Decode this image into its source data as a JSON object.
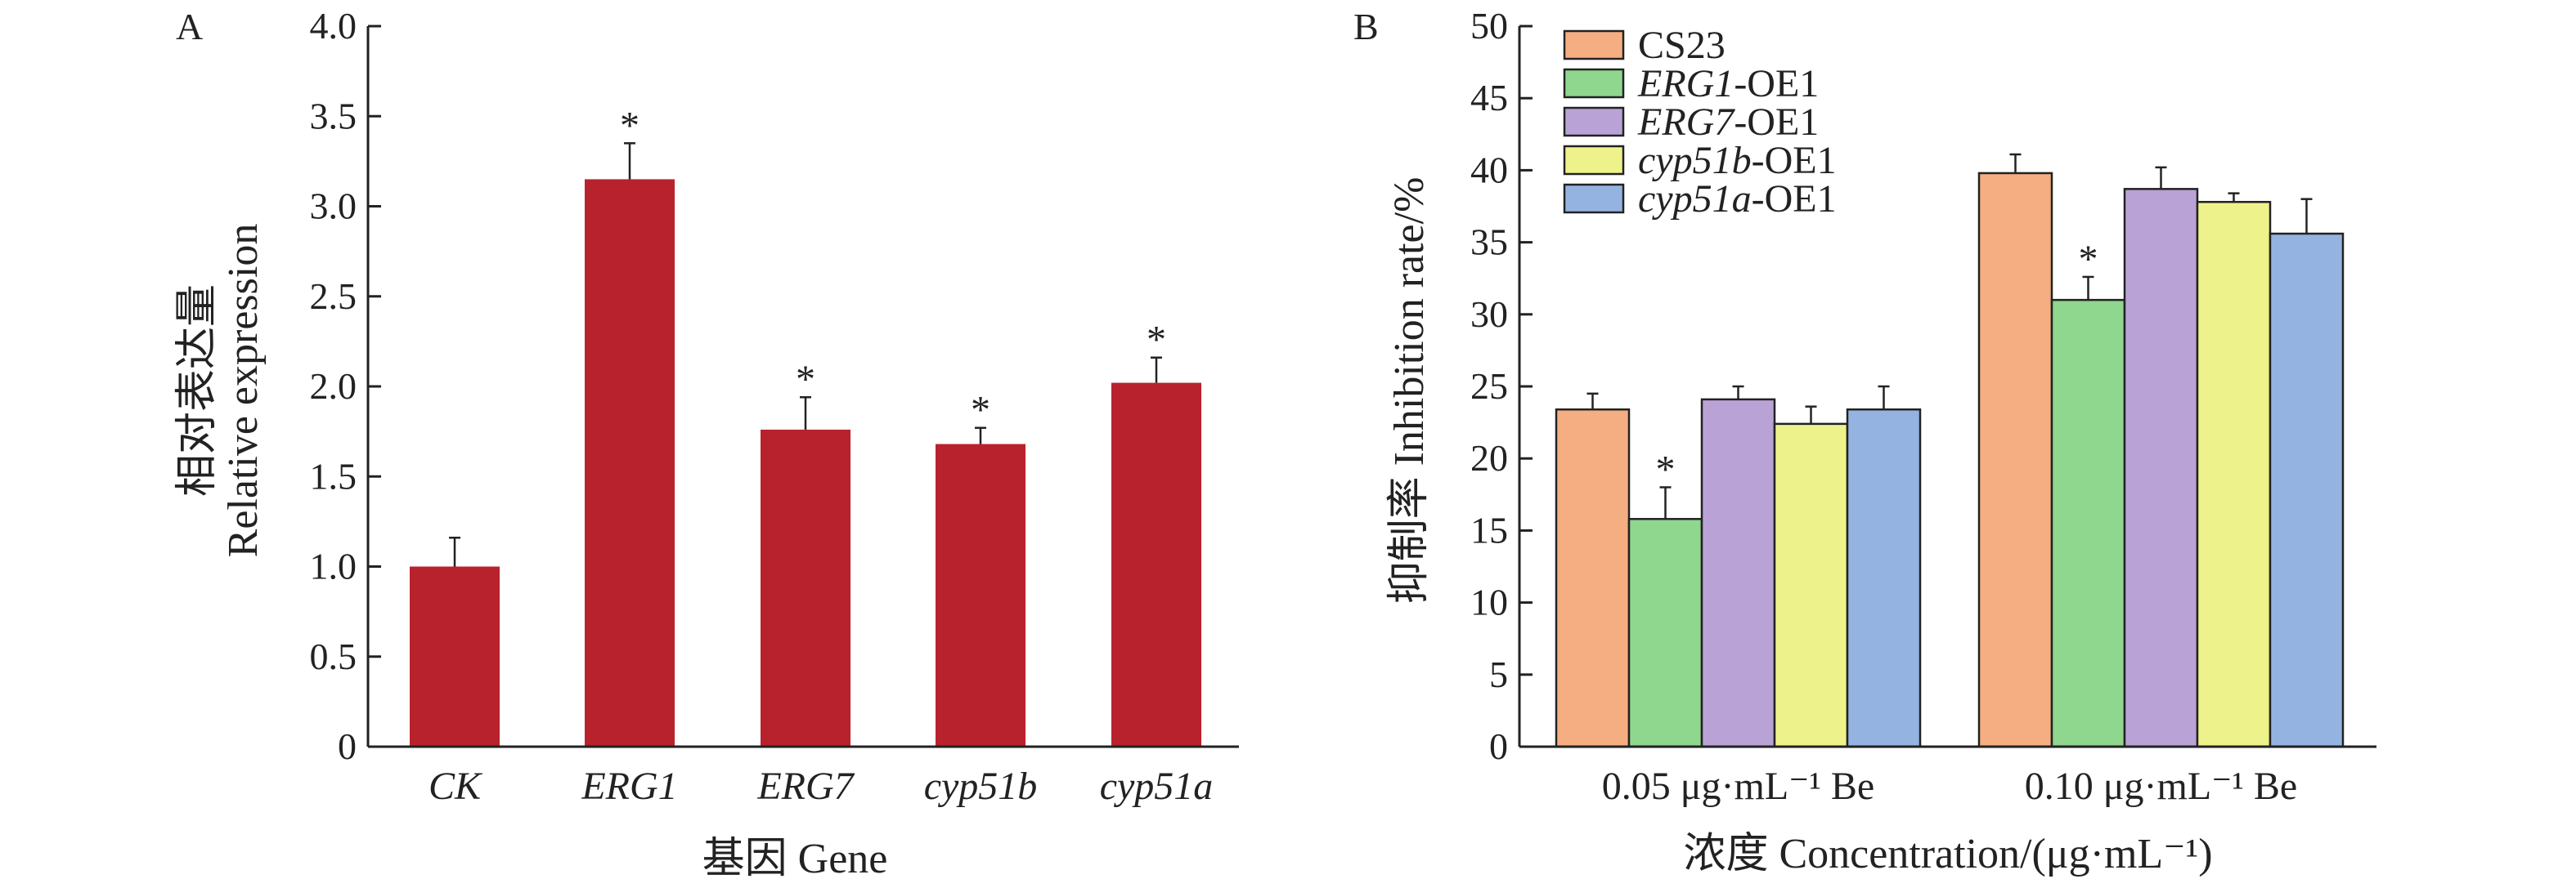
{
  "chart_data": [
    {
      "panel": "A",
      "type": "bar",
      "categories": [
        "CK",
        "ERG1",
        "ERG7",
        "cyp51b",
        "cyp51a"
      ],
      "values": [
        1.0,
        3.15,
        1.76,
        1.68,
        2.02
      ],
      "errors": [
        0.16,
        0.2,
        0.18,
        0.09,
        0.14
      ],
      "significance": [
        "",
        "*",
        "*",
        "*",
        "*"
      ],
      "bar_color": "#b8222c",
      "ylim": [
        0,
        4.0
      ],
      "yticks": [
        "0",
        "0.5",
        "1.0",
        "1.5",
        "2.0",
        "2.5",
        "3.0",
        "3.5",
        "4.0"
      ],
      "ylabel_cn": "相对表达量",
      "ylabel_en": "Relative expression",
      "xlabel": "基因 Gene"
    },
    {
      "panel": "B",
      "type": "bar",
      "group_labels": [
        "0.05 μg·mL⁻¹ Be",
        "0.10 μg·mL⁻¹ Be"
      ],
      "series": [
        {
          "name_italic": "",
          "name_rest": "CS23",
          "color": "#f4ae82",
          "values": [
            23.4,
            39.8
          ],
          "errors": [
            1.1,
            1.3
          ],
          "significance": [
            "",
            ""
          ]
        },
        {
          "name_italic": "ERG1",
          "name_rest": "-OE1",
          "color": "#8fd68e",
          "values": [
            15.8,
            31.0
          ],
          "errors": [
            2.2,
            1.6
          ],
          "significance": [
            "*",
            "*"
          ]
        },
        {
          "name_italic": "ERG7",
          "name_rest": "-OE1",
          "color": "#b8a2d6",
          "values": [
            24.1,
            38.7
          ],
          "errors": [
            0.9,
            1.5
          ],
          "significance": [
            "",
            ""
          ]
        },
        {
          "name_italic": "cyp51b",
          "name_rest": "-OE1",
          "color": "#eef28a",
          "values": [
            22.4,
            37.8
          ],
          "errors": [
            1.2,
            0.6
          ],
          "significance": [
            "",
            ""
          ]
        },
        {
          "name_italic": "cyp51a",
          "name_rest": "-OE1",
          "color": "#94b3e0",
          "values": [
            23.4,
            35.6
          ],
          "errors": [
            1.6,
            2.4
          ],
          "significance": [
            "",
            ""
          ]
        }
      ],
      "ylim": [
        0,
        50
      ],
      "yticks": [
        "0",
        "5",
        "10",
        "15",
        "20",
        "25",
        "30",
        "35",
        "40",
        "45",
        "50"
      ],
      "ylabel": "抑制率 Inhibition rate/%",
      "xlabel": "浓度 Concentration/(μg·mL⁻¹)",
      "legend_position": "top-left"
    }
  ]
}
